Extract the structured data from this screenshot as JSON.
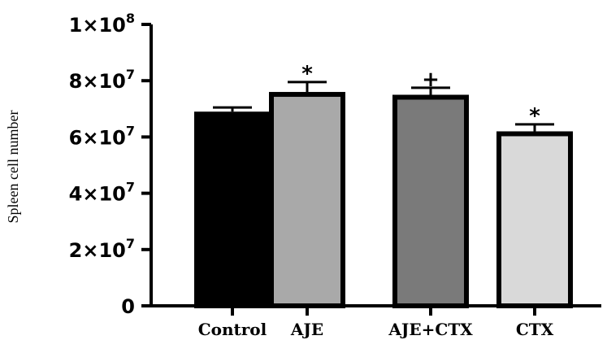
{
  "chart_data": {
    "type": "bar",
    "categories": [
      "Control",
      "AJE",
      "AJE+CTX",
      "CTX"
    ],
    "values": [
      69000000,
      76000000,
      75000000,
      62000000
    ],
    "errors": [
      1500000,
      3500000,
      2500000,
      2500000
    ],
    "annotations": [
      "",
      "*",
      "+",
      "*"
    ],
    "ylabel": "Spleen cell number",
    "ylim": [
      0,
      100000000
    ],
    "yticks": [
      0,
      20000000,
      40000000,
      60000000,
      80000000,
      100000000
    ],
    "ytick_labels": [
      "0",
      "2×10",
      "4×10",
      "6×10",
      "8×10",
      "1×10"
    ],
    "ytick_exponents": [
      "",
      "7",
      "7",
      "7",
      "7",
      "8"
    ],
    "bar_colors": [
      "#000000",
      "#a9a9a9",
      "#7a7a7a",
      "#d9d9d9"
    ],
    "bar_edge_color": "#000000",
    "grid": false
  }
}
